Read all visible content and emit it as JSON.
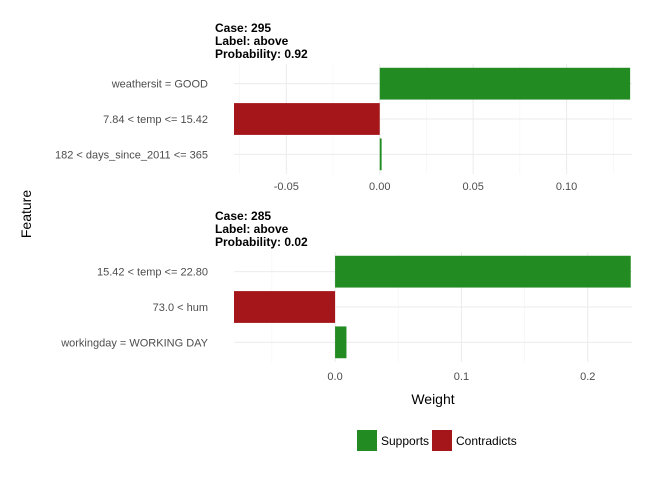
{
  "colors": {
    "supports": "#228b22",
    "contradicts": "#a4161a"
  },
  "axis_titles": {
    "y": "Feature",
    "x": "Weight"
  },
  "legend": {
    "position": "bottom",
    "items": [
      {
        "label": "Supports",
        "color": "#228b22"
      },
      {
        "label": "Contradicts",
        "color": "#a4161a"
      }
    ]
  },
  "chart_data": [
    {
      "type": "bar",
      "orientation": "horizontal",
      "title_lines": [
        "Case: 295",
        "Label: above",
        "Probability: 0.92"
      ],
      "xlim": [
        -0.078,
        0.135
      ],
      "xticks": [
        -0.05,
        0.0,
        0.05,
        0.1
      ],
      "xtick_labels": [
        "-0.05",
        "0.00",
        "0.05",
        "0.10"
      ],
      "bars": [
        {
          "feature": "weathersit = GOOD",
          "weight": 0.134,
          "kind": "Supports"
        },
        {
          "feature": "7.84 < temp <= 15.42",
          "weight": -0.078,
          "kind": "Contradicts"
        },
        {
          "feature": "182 < days_since_2011 <= 365",
          "weight": 0.001,
          "kind": "Supports"
        }
      ]
    },
    {
      "type": "bar",
      "orientation": "horizontal",
      "title_lines": [
        "Case: 285",
        "Label: above",
        "Probability: 0.02"
      ],
      "xlim": [
        -0.08,
        0.235
      ],
      "xticks": [
        0.0,
        0.1,
        0.2
      ],
      "xtick_labels": [
        "0.0",
        "0.1",
        "0.2"
      ],
      "bars": [
        {
          "feature": "15.42 < temp <= 22.80",
          "weight": 0.234,
          "kind": "Supports"
        },
        {
          "feature": "73.0 < hum",
          "weight": -0.08,
          "kind": "Contradicts"
        },
        {
          "feature": "workingday = WORKING DAY",
          "weight": 0.009,
          "kind": "Supports"
        }
      ]
    }
  ]
}
